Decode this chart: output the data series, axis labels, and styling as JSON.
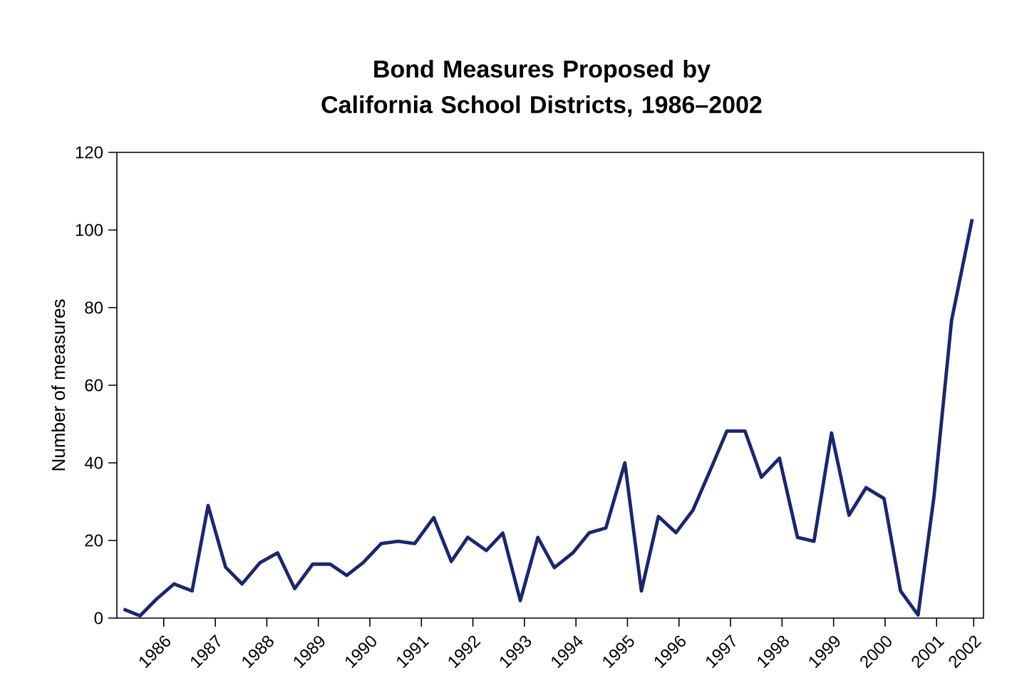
{
  "chart_data": {
    "type": "line",
    "title": "Bond Measures Proposed by California School Districts, 1986–2002",
    "ylabel": "Number of measures",
    "x": [
      1985.22,
      1985.54,
      1985.86,
      1986.2,
      1986.55,
      1986.86,
      1987.2,
      1987.52,
      1987.87,
      1988.21,
      1988.54,
      1988.89,
      1989.23,
      1989.55,
      1989.87,
      1990.22,
      1990.55,
      1990.87,
      1991.24,
      1991.58,
      1991.9,
      1992.26,
      1992.58,
      1992.92,
      1993.26,
      1993.58,
      1993.94,
      1994.26,
      1994.58,
      1994.95,
      1995.27,
      1995.6,
      1995.94,
      1996.27,
      1996.61,
      1996.93,
      1997.28,
      1997.6,
      1997.95,
      1998.3,
      1998.62,
      1998.96,
      1999.3,
      1999.63,
      1999.98,
      2000.3,
      2000.64,
      2000.95,
      2001.29,
      2001.69
    ],
    "values": [
      2.3,
      0.6,
      4.9,
      8.8,
      7,
      29,
      13.1,
      8.8,
      14.3,
      16.8,
      7.6,
      13.9,
      13.9,
      11,
      14.3,
      19.2,
      19.8,
      19.2,
      25.9,
      14.6,
      20.8,
      17.4,
      21.9,
      4.5,
      20.8,
      13,
      16.8,
      22,
      23.2,
      40,
      7,
      26.2,
      22,
      27.8,
      38.2,
      48.2,
      48.2,
      36.3,
      41.2,
      20.8,
      19.8,
      47.7,
      26.5,
      33.6,
      30.8,
      7,
      0.8,
      31.4,
      76.7,
      102.8
    ],
    "color": "#1b2670",
    "xlim": [
      1985.09,
      2001.91
    ],
    "ylim": [
      0,
      120
    ],
    "xticks": [
      1986,
      1987,
      1988,
      1989,
      1990,
      1991,
      1992,
      1993,
      1994,
      1995,
      1996,
      1997,
      1998,
      1999,
      2000,
      2001,
      {
        "value": 2001.72,
        "label": "2002"
      }
    ],
    "yticks": [
      0,
      20,
      40,
      60,
      80,
      100,
      120
    ],
    "marker": "none",
    "line_style": "solid"
  }
}
